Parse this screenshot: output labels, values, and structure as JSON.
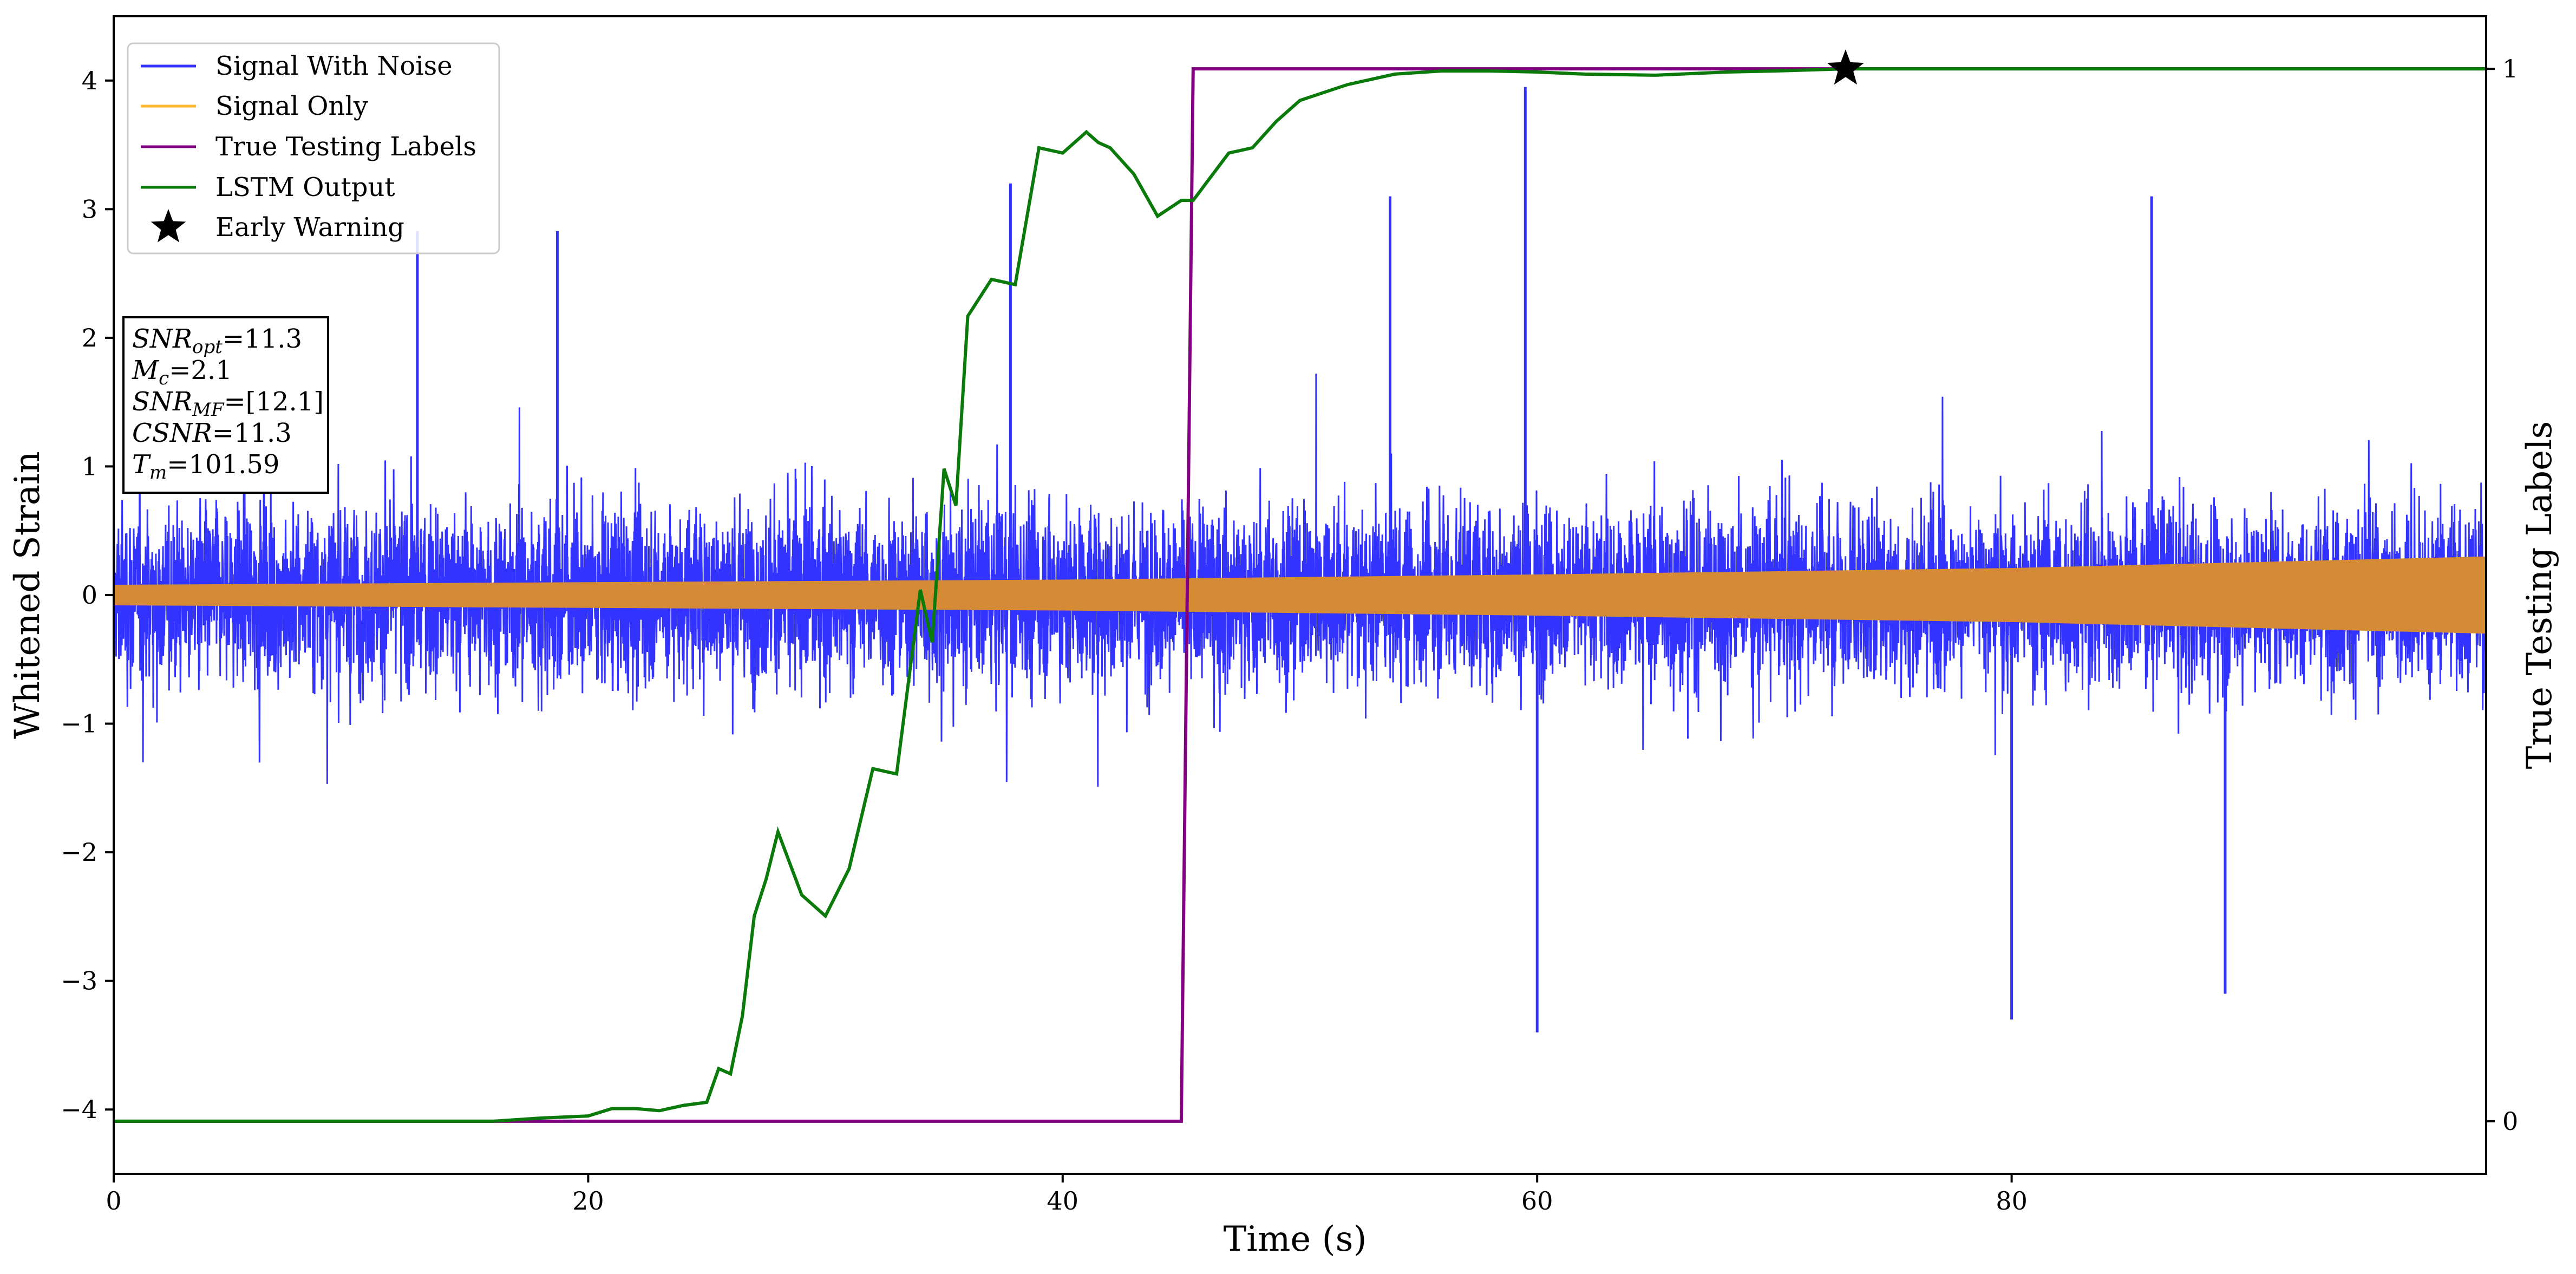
{
  "chart_data": {
    "type": "line",
    "xlabel": "Time (s)",
    "ylabel": "Whitened Strain",
    "y2label": "True Testing Labels",
    "xlim": [
      0,
      100
    ],
    "ylim": [
      -4.5,
      4.5
    ],
    "y2lim": [
      -0.05,
      1.05
    ],
    "x_ticks": [
      0,
      20,
      40,
      60,
      80
    ],
    "y_ticks": [
      -4,
      -3,
      -2,
      -1,
      0,
      1,
      2,
      3,
      4
    ],
    "y2_ticks": [
      0,
      1
    ],
    "tick_minus": "−",
    "legend_position": "upper-left",
    "colors": {
      "noise": "#3333ff",
      "signal": "#d58b35",
      "labels": "#800080",
      "lstm": "#0a7a0a",
      "star": "#000000"
    },
    "series": [
      {
        "name": "Signal With Noise",
        "key": "noise",
        "description_values": {
          "typical_abs_max": 2.3,
          "peaks": [
            [
              12.8,
              2.83
            ],
            [
              18.7,
              2.83
            ],
            [
              37.8,
              3.2
            ],
            [
              53.8,
              3.1
            ],
            [
              59.5,
              3.95
            ],
            [
              85.9,
              3.1
            ],
            [
              60.0,
              -3.4
            ],
            [
              80.0,
              -3.3
            ],
            [
              89.0,
              -3.1
            ]
          ]
        }
      },
      {
        "name": "Signal Only",
        "key": "signal",
        "envelope": [
          [
            0,
            0.08
          ],
          [
            20,
            0.1
          ],
          [
            40,
            0.12
          ],
          [
            60,
            0.16
          ],
          [
            80,
            0.21
          ],
          [
            100,
            0.3
          ]
        ]
      },
      {
        "name": "True Testing Labels",
        "key": "labels",
        "x": [
          0,
          45.0,
          45.5,
          100
        ],
        "y": [
          0,
          0,
          1,
          1
        ]
      },
      {
        "name": "LSTM Output",
        "key": "lstm",
        "x": [
          0,
          16,
          18,
          20,
          21,
          22,
          23,
          24,
          25,
          25.5,
          26,
          26.5,
          27,
          27.5,
          28,
          29,
          30,
          31,
          32,
          33,
          34,
          34.5,
          35,
          35.5,
          36,
          37,
          38,
          39,
          40,
          41,
          41.5,
          42,
          43,
          44,
          45,
          45.5,
          46,
          47,
          48,
          49,
          50,
          52,
          54,
          56,
          58,
          60,
          62,
          65,
          68,
          70,
          73,
          80,
          90,
          100
        ],
        "y": [
          0,
          0,
          0.003,
          0.005,
          0.012,
          0.012,
          0.01,
          0.015,
          0.018,
          0.05,
          0.045,
          0.1,
          0.195,
          0.23,
          0.275,
          0.215,
          0.195,
          0.24,
          0.335,
          0.33,
          0.505,
          0.455,
          0.62,
          0.585,
          0.765,
          0.8,
          0.795,
          0.925,
          0.92,
          0.94,
          0.93,
          0.925,
          0.9,
          0.86,
          0.875,
          0.875,
          0.89,
          0.92,
          0.925,
          0.95,
          0.97,
          0.985,
          0.995,
          0.998,
          0.998,
          0.997,
          0.995,
          0.994,
          0.997,
          0.998,
          1.0,
          1.0,
          1.0,
          1.0
        ]
      },
      {
        "name": "Early Warning",
        "key": "star",
        "x": [
          73
        ],
        "y": [
          1.0
        ]
      }
    ],
    "info_box": [
      {
        "main": "SNR",
        "sub": "opt",
        "value": "=11.3"
      },
      {
        "main": "M",
        "sub": "c",
        "value": "=2.1"
      },
      {
        "main": "SNR",
        "sub": "MF",
        "value": "=[12.1]"
      },
      {
        "main": "CSNR",
        "sub": "",
        "value": "=11.3"
      },
      {
        "main": "T",
        "sub": "m",
        "value": "=101.59"
      }
    ]
  }
}
